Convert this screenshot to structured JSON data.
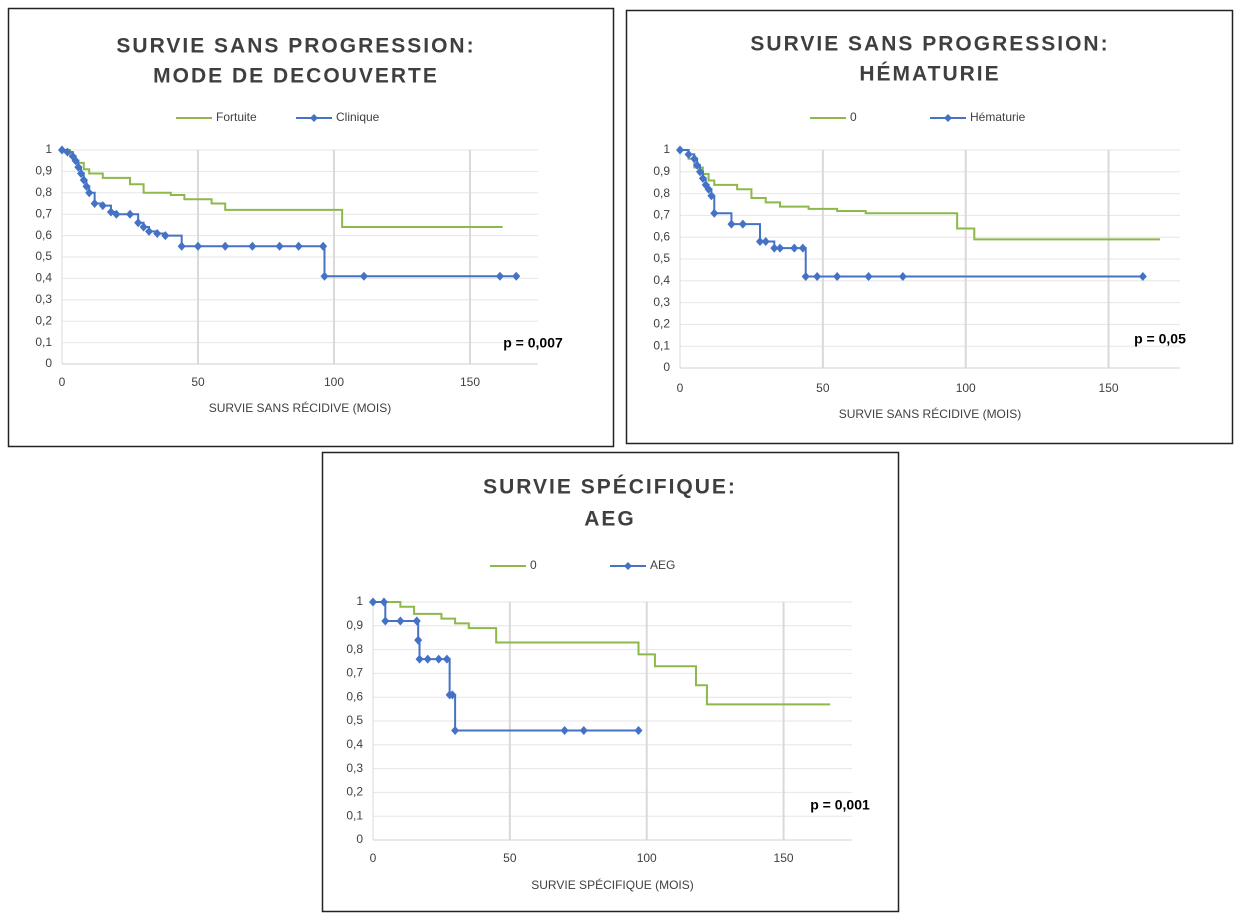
{
  "chart_data": [
    {
      "type": "line",
      "step": true,
      "title": [
        "SURVIE SANS PROGRESSION:",
        "MODE DE DECOUVERTE"
      ],
      "xlabel": "SURVIE SANS RÉCIDIVE (MOIS)",
      "annotation": "p = 0,007",
      "xlim": [
        0,
        175
      ],
      "xticks": [
        0,
        50,
        100,
        150
      ],
      "ylim": [
        0,
        1
      ],
      "yticks": [
        0,
        {
          "value": 0.1,
          "label": "0,1"
        },
        {
          "value": 0.2,
          "label": "0,2"
        },
        {
          "value": 0.3,
          "label": "0,3"
        },
        {
          "value": 0.4,
          "label": "0,4"
        },
        {
          "value": 0.5,
          "label": "0,5"
        },
        {
          "value": 0.6,
          "label": "0,6"
        },
        {
          "value": 0.7,
          "label": "0,7"
        },
        {
          "value": 0.8,
          "label": "0,8"
        },
        {
          "value": 0.9,
          "label": "0,9"
        },
        1
      ],
      "grid": true,
      "legend": "top",
      "series": [
        {
          "name": "Fortuite",
          "color": "#8db84a",
          "marker": "none",
          "x": [
            0,
            3,
            5,
            8,
            10,
            15,
            25,
            30,
            40,
            45,
            55,
            60,
            100,
            103,
            162
          ],
          "values": [
            1,
            0.97,
            0.94,
            0.91,
            0.89,
            0.87,
            0.84,
            0.8,
            0.79,
            0.77,
            0.75,
            0.72,
            0.72,
            0.64,
            0.64
          ]
        },
        {
          "name": "Clinique",
          "color": "#4472c4",
          "marker": "diamond",
          "x": [
            0,
            2,
            4,
            5,
            6,
            7,
            8,
            9,
            10,
            12,
            15,
            18,
            20,
            25,
            28,
            30,
            32,
            35,
            38,
            44,
            50,
            60,
            70,
            80,
            87,
            96,
            96.5,
            111,
            161,
            167
          ],
          "values": [
            1,
            0.99,
            0.97,
            0.95,
            0.92,
            0.89,
            0.86,
            0.83,
            0.8,
            0.75,
            0.74,
            0.71,
            0.7,
            0.7,
            0.66,
            0.64,
            0.62,
            0.61,
            0.6,
            0.55,
            0.55,
            0.55,
            0.55,
            0.55,
            0.55,
            0.55,
            0.41,
            0.41,
            0.41,
            0.41
          ]
        }
      ]
    },
    {
      "type": "line",
      "step": true,
      "title": [
        "SURVIE SANS PROGRESSION:",
        "HÉMATURIE"
      ],
      "xlabel": "SURVIE SANS RÉCIDIVE (MOIS)",
      "annotation": "p = 0,05",
      "xlim": [
        0,
        175
      ],
      "xticks": [
        0,
        50,
        100,
        150
      ],
      "ylim": [
        0,
        1
      ],
      "yticks": [
        0,
        {
          "value": 0.1,
          "label": "0,1"
        },
        {
          "value": 0.2,
          "label": "0,2"
        },
        {
          "value": 0.3,
          "label": "0,3"
        },
        {
          "value": 0.4,
          "label": "0,4"
        },
        {
          "value": 0.5,
          "label": "0,5"
        },
        {
          "value": 0.6,
          "label": "0,6"
        },
        {
          "value": 0.7,
          "label": "0,7"
        },
        {
          "value": 0.8,
          "label": "0,8"
        },
        {
          "value": 0.9,
          "label": "0,9"
        },
        1
      ],
      "grid": true,
      "legend": "top",
      "series": [
        {
          "name": "0",
          "color": "#8db84a",
          "marker": "none",
          "x": [
            0,
            3,
            5,
            8,
            10,
            12,
            20,
            25,
            30,
            35,
            45,
            55,
            65,
            95,
            97,
            103,
            168
          ],
          "values": [
            1,
            0.96,
            0.92,
            0.89,
            0.86,
            0.84,
            0.82,
            0.78,
            0.76,
            0.74,
            0.73,
            0.72,
            0.71,
            0.71,
            0.64,
            0.59,
            0.59
          ]
        },
        {
          "name": "Hématurie",
          "color": "#4472c4",
          "marker": "diamond",
          "x": [
            0,
            3,
            5,
            6,
            7,
            8,
            9,
            10,
            11,
            12,
            18,
            22,
            28,
            30,
            33,
            35,
            40,
            43,
            44,
            48,
            55,
            66,
            78,
            162
          ],
          "values": [
            1,
            0.98,
            0.96,
            0.93,
            0.9,
            0.87,
            0.84,
            0.82,
            0.79,
            0.71,
            0.66,
            0.66,
            0.58,
            0.58,
            0.55,
            0.55,
            0.55,
            0.55,
            0.42,
            0.42,
            0.42,
            0.42,
            0.42,
            0.42
          ]
        }
      ]
    },
    {
      "type": "line",
      "step": true,
      "title": [
        "SURVIE SPÉCIFIQUE:",
        "AEG"
      ],
      "xlabel": "SURVIE SPÉCIFIQUE (MOIS)",
      "annotation": "p = 0,001",
      "xlim": [
        0,
        175
      ],
      "xticks": [
        0,
        50,
        100,
        150
      ],
      "ylim": [
        0,
        1
      ],
      "yticks": [
        0,
        {
          "value": 0.1,
          "label": "0,1"
        },
        {
          "value": 0.2,
          "label": "0,2"
        },
        {
          "value": 0.3,
          "label": "0,3"
        },
        {
          "value": 0.4,
          "label": "0,4"
        },
        {
          "value": 0.5,
          "label": "0,5"
        },
        {
          "value": 0.6,
          "label": "0,6"
        },
        {
          "value": 0.7,
          "label": "0,7"
        },
        {
          "value": 0.8,
          "label": "0,8"
        },
        {
          "value": 0.9,
          "label": "0,9"
        },
        1
      ],
      "grid": true,
      "legend": "top",
      "series": [
        {
          "name": "0",
          "color": "#8db84a",
          "marker": "none",
          "x": [
            0,
            10,
            15,
            25,
            30,
            35,
            45,
            95,
            97,
            103,
            118,
            122,
            167
          ],
          "values": [
            1,
            0.98,
            0.95,
            0.93,
            0.91,
            0.89,
            0.83,
            0.83,
            0.78,
            0.73,
            0.65,
            0.57,
            0.57
          ]
        },
        {
          "name": "AEG",
          "color": "#4472c4",
          "marker": "diamond",
          "x": [
            0,
            4,
            4.5,
            10,
            16,
            16.5,
            17,
            20,
            24,
            27,
            28,
            29,
            30,
            70,
            77,
            97
          ],
          "values": [
            1,
            1,
            0.92,
            0.92,
            0.92,
            0.84,
            0.76,
            0.76,
            0.76,
            0.76,
            0.61,
            0.61,
            0.46,
            0.46,
            0.46,
            0.46
          ]
        }
      ]
    }
  ]
}
